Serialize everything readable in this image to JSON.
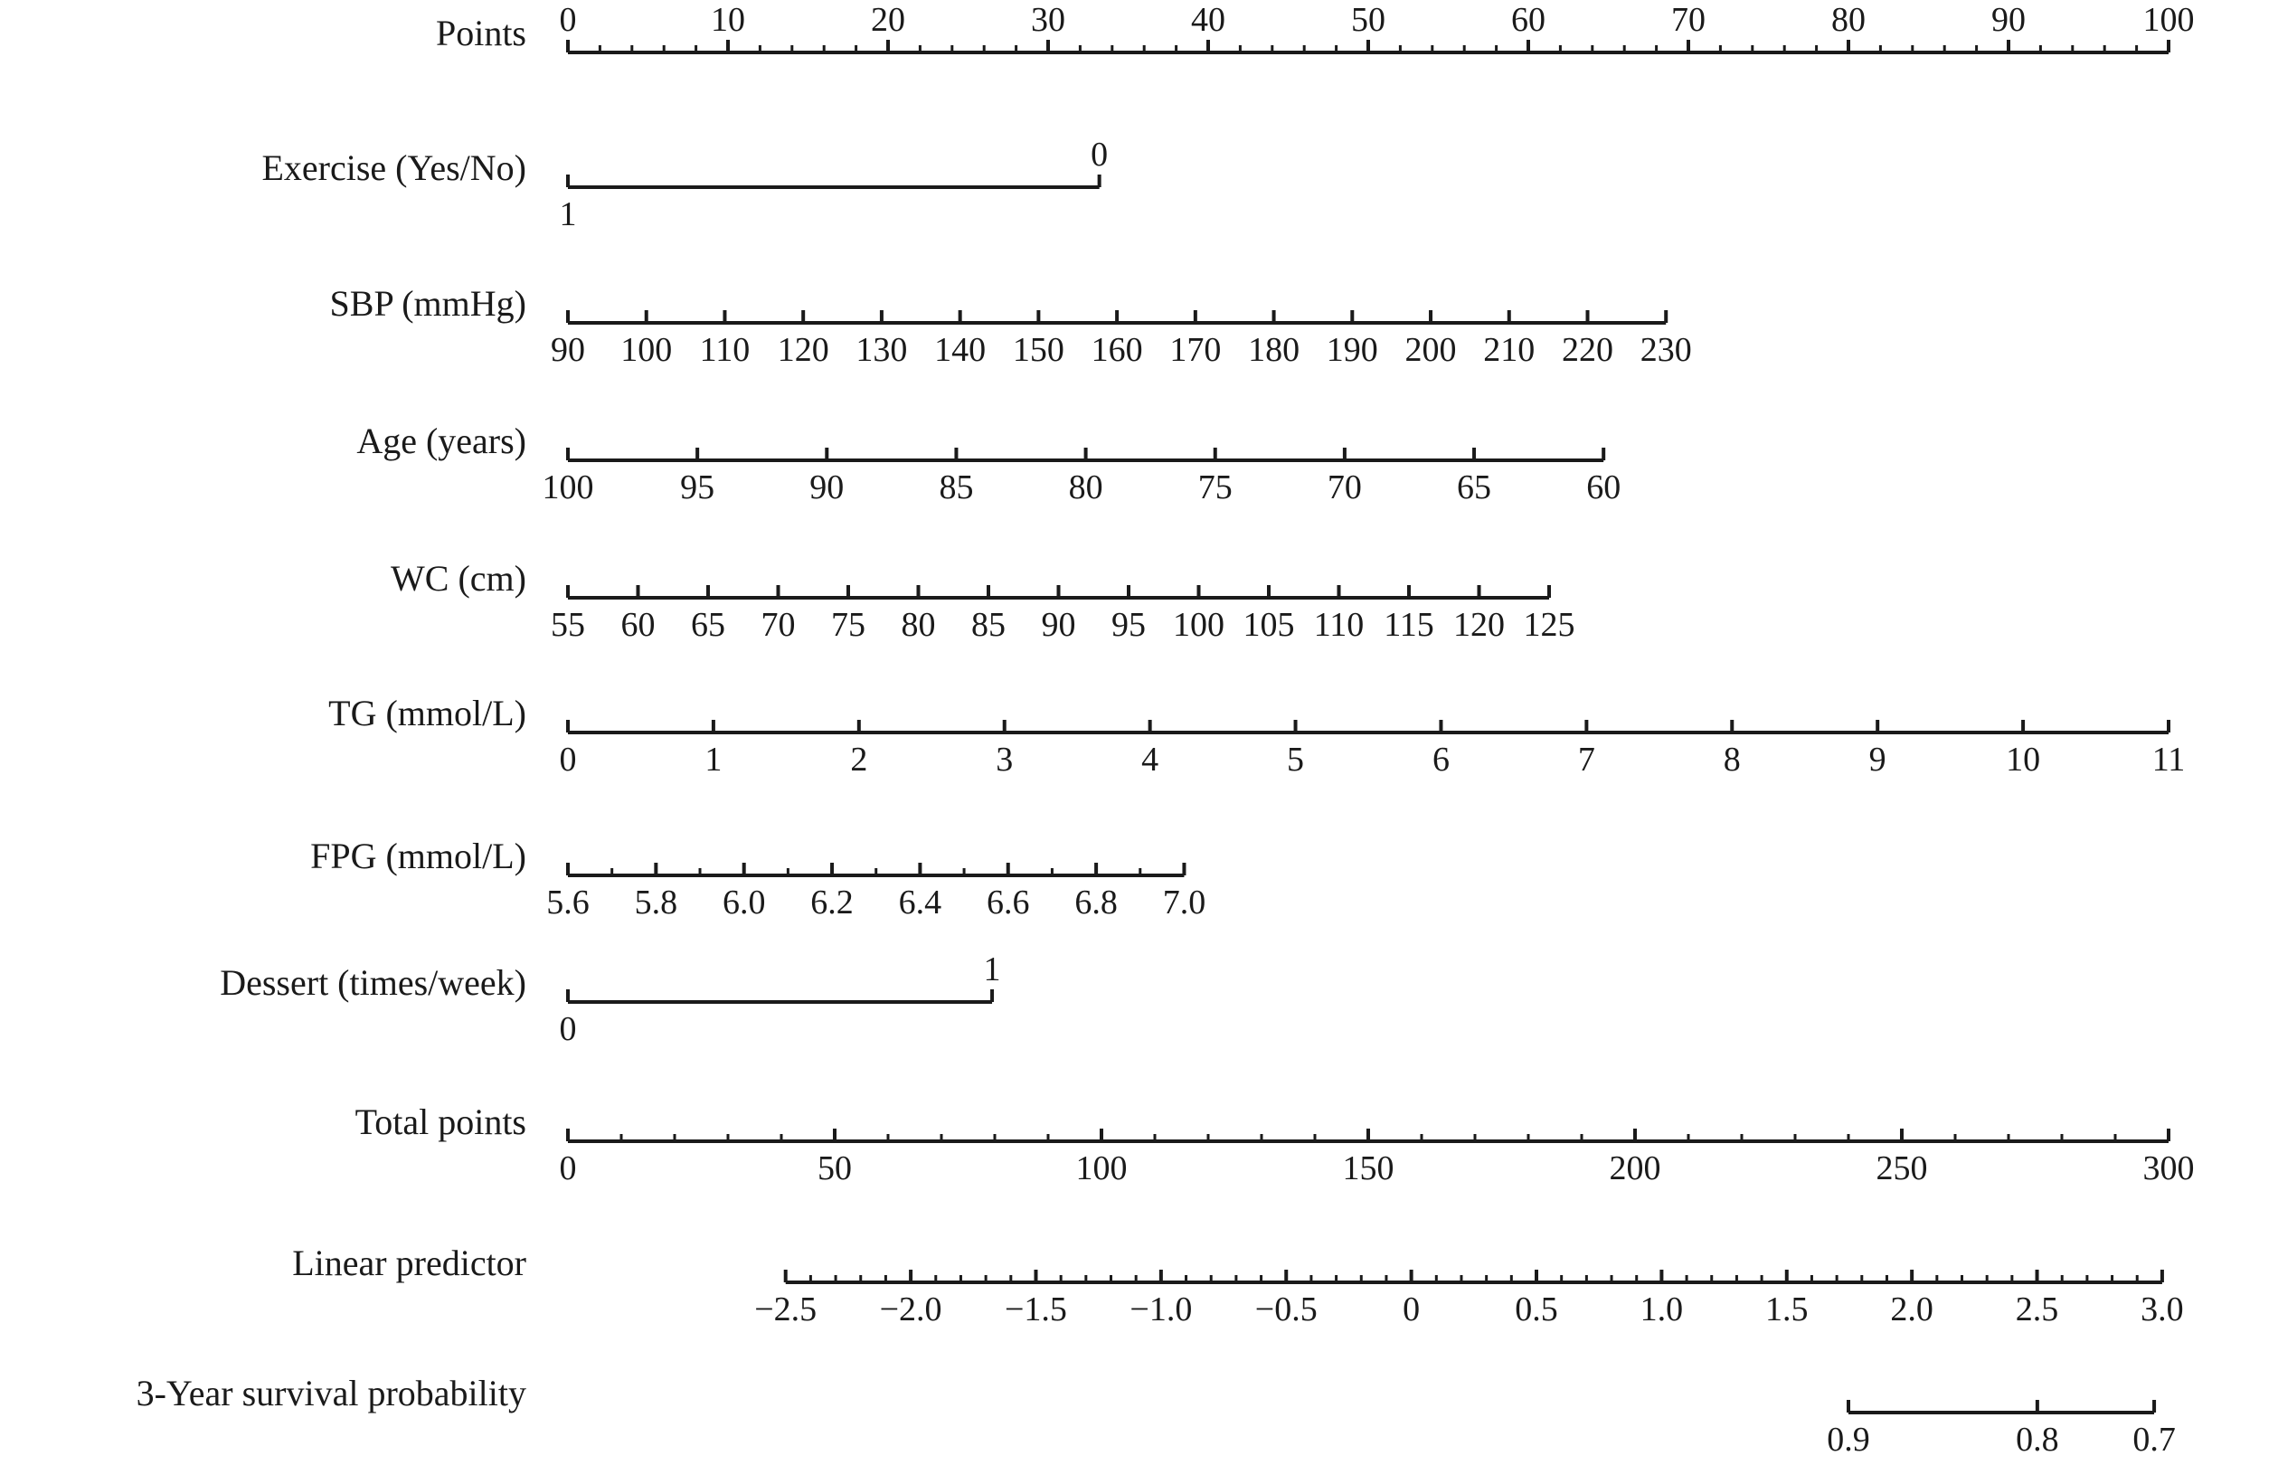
{
  "chart_data": {
    "type": "nomogram",
    "title": "",
    "scales": [
      {
        "id": "points",
        "label": "Points",
        "values": [
          "0",
          "10",
          "20",
          "30",
          "40",
          "50",
          "60",
          "70",
          "80",
          "90",
          "100"
        ],
        "point_range": [
          0,
          100
        ],
        "minor_ticks": 4
      },
      {
        "id": "exercise",
        "label": "Exercise (Yes/No)",
        "values": [
          "1",
          "0"
        ],
        "point_range": [
          0,
          33.2
        ],
        "categorical": true,
        "label_sides": [
          "below",
          "above"
        ]
      },
      {
        "id": "sbp",
        "label": "SBP (mmHg)",
        "values": [
          "90",
          "100",
          "110",
          "120",
          "130",
          "140",
          "150",
          "160",
          "170",
          "180",
          "190",
          "200",
          "210",
          "220",
          "230"
        ],
        "point_range": [
          0,
          68.6
        ]
      },
      {
        "id": "age",
        "label": "Age (years)",
        "values": [
          "100",
          "95",
          "90",
          "85",
          "80",
          "75",
          "70",
          "65",
          "60"
        ],
        "point_range": [
          0,
          64.7
        ]
      },
      {
        "id": "wc",
        "label": "WC (cm)",
        "values": [
          "55",
          "60",
          "65",
          "70",
          "75",
          "80",
          "85",
          "90",
          "95",
          "100",
          "105",
          "110",
          "115",
          "120",
          "125"
        ],
        "point_range": [
          0,
          61.3
        ]
      },
      {
        "id": "tg",
        "label": "TG (mmol/L)",
        "values": [
          "0",
          "1",
          "2",
          "3",
          "4",
          "5",
          "6",
          "7",
          "8",
          "9",
          "10",
          "11"
        ],
        "point_range": [
          0,
          100
        ]
      },
      {
        "id": "fpg",
        "label": "FPG (mmol/L)",
        "values": [
          "5.6",
          "5.8",
          "6.0",
          "6.2",
          "6.4",
          "6.6",
          "6.8",
          "7.0"
        ],
        "point_range": [
          0,
          38.5
        ],
        "minor_ticks": 1
      },
      {
        "id": "dessert",
        "label": "Dessert (times/week)",
        "values": [
          "0",
          "1"
        ],
        "point_range": [
          0,
          26.5
        ],
        "categorical": true,
        "label_sides": [
          "below",
          "above"
        ]
      },
      {
        "id": "total_points",
        "label": "Total points",
        "values": [
          "0",
          "50",
          "100",
          "150",
          "200",
          "250",
          "300"
        ],
        "point_range": [
          0,
          100
        ],
        "minor_ticks": 4
      },
      {
        "id": "linear_predictor",
        "label": "Linear predictor",
        "values": [
          "−2.5",
          "−2.0",
          "−1.5",
          "−1.0",
          "−0.5",
          "0",
          "0.5",
          "1.0",
          "1.5",
          "2.0",
          "2.5",
          "3.0"
        ],
        "point_range": [
          13.6,
          99.6
        ],
        "minor_ticks": 4
      },
      {
        "id": "survival_3yr",
        "label": "3-Year survival probability",
        "values": [
          "0.9",
          "0.8",
          "0.7"
        ],
        "value_positions": [
          80.0,
          91.8,
          99.1
        ]
      }
    ]
  }
}
